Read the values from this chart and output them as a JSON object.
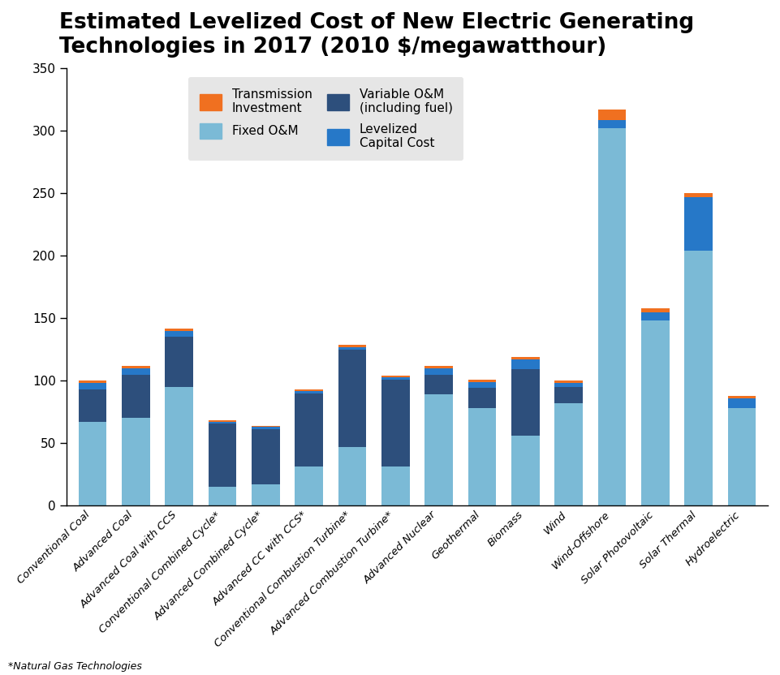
{
  "title": "Estimated Levelized Cost of New Electric Generating\nTechnologies in 2017 (2010 $/megawatthour)",
  "categories": [
    "Conventional Coal",
    "Advanced Coal",
    "Advanced Coal with CCS",
    "Conventional Combined Cycle*",
    "Advanced Combined Cycle*",
    "Advanced CC with CCS*",
    "Conventional Combustion Turbine*",
    "Advanced Combustion Turbine*",
    "Advanced Nuclear",
    "Geothermal",
    "Biomass",
    "Wind",
    "Wind-Offshore",
    "Solar Photovoltaic",
    "Solar Thermal",
    "Hydroelectric"
  ],
  "fixed_om": [
    67,
    70,
    95,
    15,
    17,
    31,
    47,
    31,
    89,
    78,
    56,
    82,
    302,
    148,
    204,
    78
  ],
  "variable_om": [
    26,
    35,
    40,
    51,
    44,
    59,
    78,
    70,
    16,
    16,
    53,
    13,
    0,
    0,
    0,
    0
  ],
  "levelized": [
    5,
    5,
    5,
    1,
    2,
    2,
    2,
    2,
    5,
    5,
    8,
    3,
    7,
    7,
    43,
    8
  ],
  "transmission": [
    2,
    2,
    2,
    1,
    1,
    1,
    2,
    1,
    2,
    2,
    2,
    2,
    8,
    3,
    3,
    2
  ],
  "color_fixed_om": "#7BBAD6",
  "color_variable_om": "#2D4F7C",
  "color_levelized": "#2678C8",
  "color_transmission": "#F07020",
  "ylim": [
    0,
    350
  ],
  "yticks": [
    0,
    50,
    100,
    150,
    200,
    250,
    300,
    350
  ],
  "footnote": "*Natural Gas Technologies"
}
